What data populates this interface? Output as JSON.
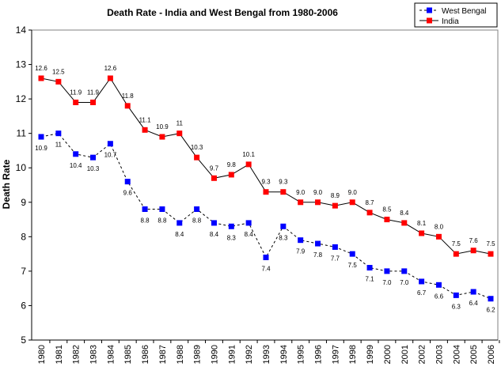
{
  "chart_data": {
    "type": "line",
    "title": "Death Rate - India and West Bengal  from 1980-2006",
    "xlabel": "",
    "ylabel": "Death Rate",
    "ylim": [
      5,
      14
    ],
    "yticks": [
      "5",
      "6",
      "7",
      "8",
      "9",
      "10",
      "11",
      "12",
      "13",
      "14"
    ],
    "grid": false,
    "legend_position": "top-right",
    "categories": [
      "1980",
      "1981",
      "1982",
      "1983",
      "1984",
      "1985",
      "1986",
      "1987",
      "1988",
      "1989",
      "1990",
      "1991",
      "1992",
      "1993",
      "1994",
      "1995",
      "1996",
      "1997",
      "1998",
      "1999",
      "2000",
      "2001",
      "2002",
      "2003",
      "2004",
      "2005",
      "2006"
    ],
    "series": [
      {
        "name": "West Bengal",
        "color": "#0000ff",
        "line_color": "#000000",
        "line_style": "dashed",
        "marker": "square",
        "values": [
          10.9,
          11.0,
          10.4,
          10.3,
          10.7,
          9.6,
          8.8,
          8.8,
          8.4,
          8.8,
          8.4,
          8.3,
          8.4,
          7.4,
          8.3,
          7.9,
          7.8,
          7.7,
          7.5,
          7.1,
          7.0,
          7.0,
          6.7,
          6.6,
          6.3,
          6.4,
          6.2
        ],
        "labels": [
          "10.9",
          "11",
          "10.4",
          "10.3",
          "10.7",
          "9.6",
          "8.8",
          "8.8",
          "8.4",
          "8.8",
          "8.4",
          "8.3",
          "8.4",
          "7.4",
          "8.3",
          "7.9",
          "7.8",
          "7.7",
          "7.5",
          "7.1",
          "7.0",
          "7.0",
          "6.7",
          "6.6",
          "6.3",
          "6.4",
          "6.2"
        ]
      },
      {
        "name": "India",
        "color": "#ff0000",
        "line_color": "#000000",
        "line_style": "solid",
        "marker": "square",
        "values": [
          12.6,
          12.5,
          11.9,
          11.9,
          12.6,
          11.8,
          11.1,
          10.9,
          11.0,
          10.3,
          9.7,
          9.8,
          10.1,
          9.3,
          9.3,
          9.0,
          9.0,
          8.9,
          9.0,
          8.7,
          8.5,
          8.4,
          8.1,
          8.0,
          7.5,
          7.6,
          7.5
        ],
        "labels": [
          "12.6",
          "12.5",
          "11.9",
          "11.9",
          "12.6",
          "11.8",
          "11.1",
          "10.9",
          "11",
          "10.3",
          "9.7",
          "9.8",
          "10.1",
          "9.3",
          "9.3",
          "9.0",
          "9.0",
          "8.9",
          "9.0",
          "8.7",
          "8.5",
          "8.4",
          "8.1",
          "8.0",
          "7.5",
          "7.6",
          "7.5"
        ]
      }
    ]
  }
}
